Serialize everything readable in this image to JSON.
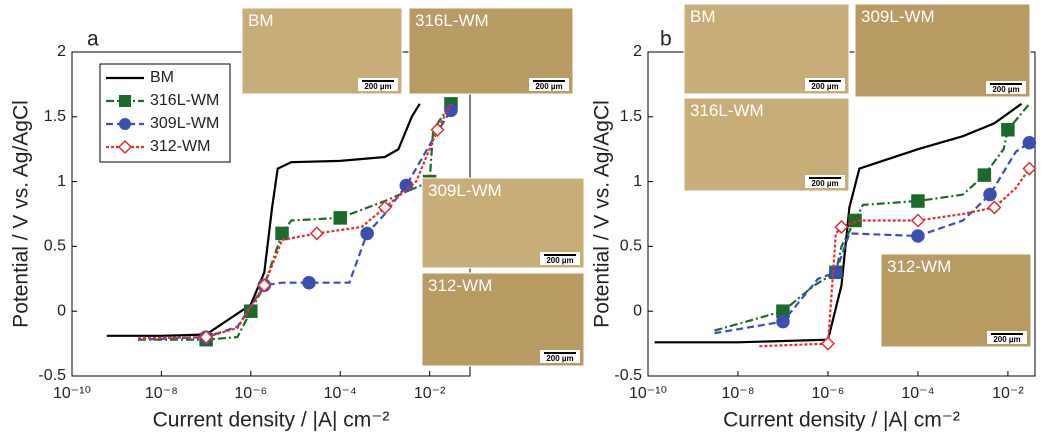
{
  "chart_data": [
    {
      "type": "line",
      "panel_label": "a",
      "xlabel": "Current density / |A| cm⁻²",
      "ylabel": "Potential / V vs. Ag/AgCl",
      "xscale": "log",
      "xlim": [
        1e-10,
        0.08
      ],
      "ylim": [
        -0.5,
        2
      ],
      "xticks": [
        {
          "value": 1e-10,
          "label": "10⁻¹⁰"
        },
        {
          "value": 1e-08,
          "label": "10⁻⁸"
        },
        {
          "value": 1e-06,
          "label": "10⁻⁶"
        },
        {
          "value": 0.0001,
          "label": "10⁻⁴"
        },
        {
          "value": 0.01,
          "label": "10⁻²"
        }
      ],
      "yticks": [
        -0.5,
        0,
        0.5,
        1,
        1.5,
        2
      ],
      "legend": "upper left",
      "insets": [
        {
          "label": "BM",
          "scale": "200 µm"
        },
        {
          "label": "316L-WM",
          "scale": "200 µm"
        },
        {
          "label": "309L-WM",
          "scale": "200 µm"
        },
        {
          "label": "312-WM",
          "scale": "200 µm"
        }
      ],
      "series": [
        {
          "name": "BM",
          "color": "#000000",
          "linestyle": "solid",
          "marker": "none",
          "x": [
            6e-10,
            1e-08,
            1e-07,
            1e-06,
            2e-06,
            3e-06,
            4e-06,
            8e-06,
            0.0001,
            0.001,
            0.002,
            0.004,
            0.006
          ],
          "values": [
            -0.19,
            -0.19,
            -0.18,
            0.05,
            0.3,
            0.8,
            1.1,
            1.15,
            1.16,
            1.19,
            1.25,
            1.5,
            1.6
          ]
        },
        {
          "name": "316L-WM",
          "color": "#1a6b2a",
          "linestyle": "dashdot",
          "marker": "square",
          "x": [
            3e-09,
            1e-07,
            5e-07,
            1e-06,
            2e-06,
            5e-06,
            8e-06,
            0.0001,
            0.001,
            0.01,
            0.012,
            0.03
          ],
          "values": [
            -0.22,
            -0.22,
            -0.2,
            0,
            0.2,
            0.6,
            0.7,
            0.72,
            0.85,
            1.0,
            1.4,
            1.6
          ]
        },
        {
          "name": "309L-WM",
          "color": "#3a4fb0",
          "linestyle": "dashed",
          "marker": "circle",
          "x": [
            3e-09,
            1e-07,
            5e-07,
            2e-06,
            5e-06,
            2e-05,
            0.00016,
            0.0004,
            0.001,
            0.003,
            0.013,
            0.03
          ],
          "values": [
            -0.22,
            -0.2,
            -0.12,
            0.2,
            0.22,
            0.22,
            0.22,
            0.6,
            0.75,
            0.97,
            1.35,
            1.55
          ]
        },
        {
          "name": "312-WM",
          "color": "#e03030",
          "linestyle": "dotted",
          "marker": "diamond",
          "x": [
            3e-09,
            1e-07,
            5e-07,
            2e-06,
            5e-06,
            3e-05,
            0.0003,
            0.001,
            0.005,
            0.015,
            0.03
          ],
          "values": [
            -0.21,
            -0.2,
            -0.13,
            0.2,
            0.55,
            0.6,
            0.65,
            0.8,
            1.0,
            1.4,
            1.6
          ]
        }
      ]
    },
    {
      "type": "line",
      "panel_label": "b",
      "xlabel": "Current density / |A| cm⁻²",
      "ylabel": "Potential / V vs. Ag/AgCl",
      "xscale": "log",
      "xlim": [
        1e-10,
        0.04
      ],
      "ylim": [
        -0.5,
        2
      ],
      "xticks": [
        {
          "value": 1e-10,
          "label": "10⁻¹⁰"
        },
        {
          "value": 1e-08,
          "label": "10⁻⁸"
        },
        {
          "value": 1e-06,
          "label": "10⁻⁶"
        },
        {
          "value": 0.0001,
          "label": "10⁻⁴"
        },
        {
          "value": 0.01,
          "label": "10⁻²"
        }
      ],
      "yticks": [
        -0.5,
        0,
        0.5,
        1,
        1.5,
        2
      ],
      "insets": [
        {
          "label": "BM",
          "scale": "200 µm"
        },
        {
          "label": "309L-WM",
          "scale": "200 µm"
        },
        {
          "label": "316L-WM",
          "scale": "200 µm"
        },
        {
          "label": "312-WM",
          "scale": "200 µm"
        }
      ],
      "series": [
        {
          "name": "BM",
          "color": "#000000",
          "linestyle": "solid",
          "marker": "none",
          "x": [
            1.4e-10,
            1e-08,
            1e-06,
            2e-06,
            3e-06,
            5e-06,
            0.0001,
            0.001,
            0.005,
            0.02
          ],
          "values": [
            -0.24,
            -0.24,
            -0.22,
            0.2,
            0.8,
            1.1,
            1.25,
            1.35,
            1.45,
            1.6
          ]
        },
        {
          "name": "316L-WM",
          "color": "#1a6b2a",
          "linestyle": "dashdot",
          "marker": "square",
          "x": [
            3e-09,
            1e-07,
            5e-07,
            1.5e-06,
            2e-06,
            4e-06,
            6e-06,
            0.0001,
            0.001,
            0.003,
            0.008,
            0.01,
            0.03
          ],
          "values": [
            -0.15,
            0,
            0.2,
            0.3,
            0.5,
            0.7,
            0.82,
            0.85,
            0.9,
            1.05,
            1.25,
            1.4,
            1.6
          ]
        },
        {
          "name": "309L-WM",
          "color": "#3a4fb0",
          "linestyle": "dashed",
          "marker": "circle",
          "x": [
            3e-09,
            1e-07,
            6e-07,
            1.5e-06,
            3e-06,
            0.0001,
            0.001,
            0.004,
            0.015,
            0.03
          ],
          "values": [
            -0.17,
            -0.08,
            0.25,
            0.3,
            0.6,
            0.58,
            0.7,
            0.9,
            1.23,
            1.3
          ]
        },
        {
          "name": "312-WM",
          "color": "#e03030",
          "linestyle": "dotted",
          "marker": "diamond",
          "x": [
            3e-08,
            1e-06,
            1.5e-06,
            2e-06,
            5e-06,
            0.0001,
            0.001,
            0.005,
            0.015,
            0.03
          ],
          "values": [
            -0.27,
            -0.25,
            0.6,
            0.65,
            0.7,
            0.7,
            0.75,
            0.8,
            0.95,
            1.1
          ]
        }
      ]
    }
  ]
}
